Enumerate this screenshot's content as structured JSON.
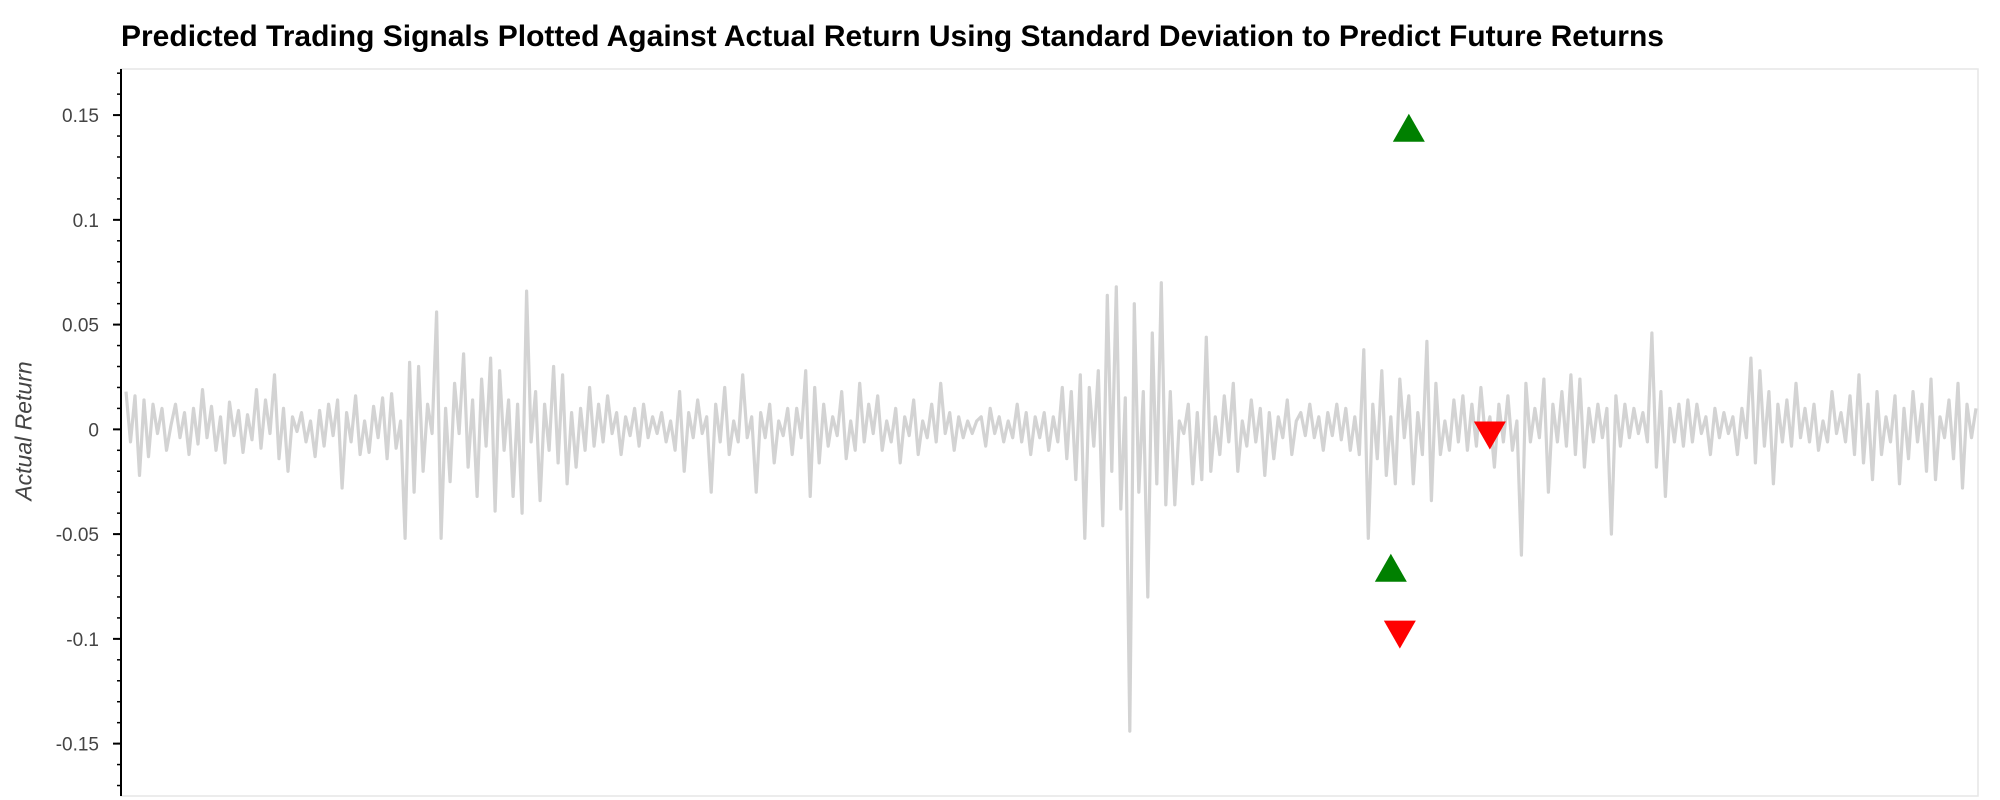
{
  "chart_data": {
    "type": "line",
    "title": "Predicted Trading Signals Plotted Against Actual Return Using Standard Deviation to Predict Future Returns",
    "xlabel": "",
    "ylabel": "Actual Return",
    "ylim": [
      -0.175,
      0.172
    ],
    "yticks": [
      0.15,
      0.1,
      0.05,
      0,
      -0.05,
      -0.1,
      -0.15
    ],
    "ytick_labels": [
      "0.15",
      "0.1",
      "0.05",
      "0",
      "-0.05",
      "-0.1",
      "-0.15"
    ],
    "grid": false,
    "line_color": "#d3d3d3",
    "buy_color": "#008000",
    "sell_color": "#ff0000",
    "series": [
      {
        "values": [
          0.018,
          -0.006,
          0.016,
          -0.022,
          0.014,
          -0.013,
          0.012,
          -0.002,
          0.01,
          -0.01,
          0.002,
          0.012,
          -0.004,
          0.008,
          -0.012,
          0.01,
          -0.007,
          0.019,
          -0.004,
          0.011,
          -0.01,
          0.006,
          -0.016,
          0.013,
          -0.003,
          0.009,
          -0.011,
          0.007,
          -0.005,
          0.019,
          -0.009,
          0.014,
          -0.002,
          0.026,
          -0.014,
          0.01,
          -0.02,
          0.006,
          -0.001,
          0.008,
          -0.006,
          0.004,
          -0.013,
          0.009,
          -0.008,
          0.012,
          -0.003,
          0.014,
          -0.028,
          0.008,
          -0.006,
          0.016,
          -0.012,
          0.004,
          -0.011,
          0.011,
          -0.004,
          0.015,
          -0.014,
          0.017,
          -0.009,
          0.004,
          -0.052,
          0.032,
          -0.03,
          0.03,
          -0.02,
          0.012,
          -0.002,
          0.056,
          -0.052,
          0.01,
          -0.025,
          0.022,
          -0.002,
          0.036,
          -0.018,
          0.014,
          -0.032,
          0.024,
          -0.008,
          0.034,
          -0.039,
          0.028,
          -0.01,
          0.014,
          -0.032,
          0.012,
          -0.04,
          0.066,
          -0.006,
          0.018,
          -0.034,
          0.012,
          -0.01,
          0.03,
          -0.016,
          0.026,
          -0.026,
          0.008,
          -0.018,
          0.01,
          -0.01,
          0.02,
          -0.008,
          0.012,
          -0.006,
          0.016,
          -0.002,
          0.008,
          -0.012,
          0.006,
          -0.003,
          0.01,
          -0.008,
          0.012,
          -0.004,
          0.006,
          -0.002,
          0.008,
          -0.006,
          0.004,
          -0.01,
          0.018,
          -0.02,
          0.008,
          -0.004,
          0.014,
          -0.002,
          0.006,
          -0.03,
          0.012,
          -0.006,
          0.02,
          -0.012,
          0.004,
          -0.006,
          0.026,
          -0.004,
          0.006,
          -0.03,
          0.008,
          -0.004,
          0.012,
          -0.016,
          0.004,
          -0.003,
          0.01,
          -0.012,
          0.01,
          -0.004,
          0.028,
          -0.032,
          0.02,
          -0.016,
          0.012,
          -0.008,
          0.006,
          -0.003,
          0.018,
          -0.014,
          0.004,
          -0.01,
          0.022,
          -0.006,
          0.012,
          -0.002,
          0.016,
          -0.01,
          0.004,
          -0.006,
          0.01,
          -0.016,
          0.006,
          -0.003,
          0.014,
          -0.012,
          0.004,
          -0.004,
          0.012,
          -0.006,
          0.022,
          -0.002,
          0.008,
          -0.01,
          0.006,
          -0.004,
          0.004,
          -0.002,
          0.004,
          0.006,
          -0.008,
          0.01,
          -0.002,
          0.006,
          -0.006,
          0.004,
          -0.004,
          0.012,
          -0.006,
          0.008,
          -0.012,
          0.006,
          -0.004,
          0.008,
          -0.01,
          0.006,
          -0.006,
          0.02,
          -0.014,
          0.018,
          -0.024,
          0.026,
          -0.052,
          0.02,
          -0.008,
          0.028,
          -0.046,
          0.064,
          -0.02,
          0.068,
          -0.038,
          0.015,
          -0.144,
          0.06,
          -0.03,
          0.018,
          -0.08,
          0.046,
          -0.026,
          0.07,
          -0.036,
          0.018,
          -0.036,
          0.004,
          -0.002,
          0.012,
          -0.026,
          0.008,
          -0.024,
          0.044,
          -0.02,
          0.006,
          -0.012,
          0.016,
          -0.006,
          0.022,
          -0.02,
          0.004,
          -0.008,
          0.014,
          -0.006,
          0.01,
          -0.022,
          0.008,
          -0.014,
          0.006,
          -0.004,
          0.014,
          -0.012,
          0.004,
          0.008,
          -0.003,
          0.012,
          -0.004,
          0.006,
          -0.01,
          0.008,
          -0.003,
          0.012,
          -0.005,
          0.01,
          -0.01,
          0.006,
          -0.012,
          0.038,
          -0.052,
          0.012,
          -0.014,
          0.028,
          -0.022,
          0.006,
          -0.026,
          0.024,
          -0.004,
          0.016,
          -0.026,
          0.008,
          -0.012,
          0.042,
          -0.034,
          0.022,
          -0.012,
          0.004,
          -0.01,
          0.014,
          -0.006,
          0.016,
          -0.01,
          0.012,
          -0.008,
          0.02,
          -0.004,
          0.006,
          -0.018,
          0.012,
          -0.006,
          0.016,
          -0.01,
          0.004,
          -0.06,
          0.022,
          -0.006,
          0.01,
          -0.004,
          0.024,
          -0.03,
          0.012,
          -0.006,
          0.018,
          -0.008,
          0.026,
          -0.012,
          0.024,
          -0.018,
          0.01,
          -0.006,
          0.012,
          -0.004,
          0.01,
          -0.05,
          0.016,
          -0.008,
          0.012,
          -0.004,
          0.01,
          -0.002,
          0.008,
          -0.006,
          0.046,
          -0.018,
          0.018,
          -0.032,
          0.01,
          -0.006,
          0.012,
          -0.008,
          0.014,
          -0.006,
          0.012,
          -0.002,
          0.006,
          -0.012,
          0.01,
          -0.004,
          0.008,
          -0.002,
          0.006,
          -0.012,
          0.01,
          -0.004,
          0.034,
          -0.016,
          0.028,
          -0.008,
          0.018,
          -0.026,
          0.012,
          -0.006,
          0.014,
          -0.008,
          0.022,
          -0.004,
          0.01,
          -0.006,
          0.012,
          -0.01,
          0.004,
          -0.006,
          0.018,
          -0.002,
          0.008,
          -0.006,
          0.016,
          -0.012,
          0.026,
          -0.016,
          0.012,
          -0.024,
          0.018,
          -0.012,
          0.006,
          -0.006,
          0.016,
          -0.026,
          0.01,
          -0.014,
          0.018,
          -0.006,
          0.012,
          -0.02,
          0.024,
          -0.024,
          0.006,
          -0.004,
          0.014,
          -0.014,
          0.022,
          -0.028,
          0.012,
          -0.004,
          0.01
        ]
      }
    ],
    "signals": {
      "buy": [
        {
          "x": 285,
          "y": 0.143
        },
        {
          "x": 281,
          "y": -0.067
        }
      ],
      "sell": [
        {
          "x": 283,
          "y": -0.097
        },
        {
          "x": 303,
          "y": -0.002
        }
      ]
    }
  }
}
